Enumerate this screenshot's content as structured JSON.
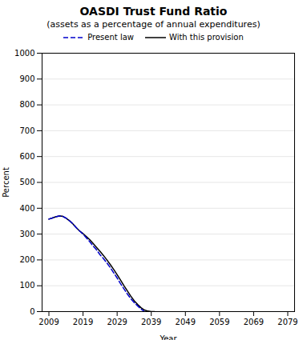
{
  "chart_data": {
    "type": "line",
    "title": "OASDI Trust Fund Ratio",
    "subtitle": "(assets as a percentage of annual expenditures)",
    "xlabel": "Year",
    "ylabel": "Percent",
    "x": [
      2009,
      2010,
      2011,
      2012,
      2013,
      2014,
      2015,
      2016,
      2017,
      2018,
      2019,
      2020,
      2021,
      2022,
      2023,
      2024,
      2025,
      2026,
      2027,
      2028,
      2029,
      2030,
      2031,
      2032,
      2033,
      2034,
      2035,
      2036,
      2037,
      2038,
      2039,
      2040
    ],
    "series": [
      {
        "name": "Present law",
        "color": "#0000cc",
        "line_style": "dashed",
        "values": [
          358,
          362,
          367,
          370,
          369,
          362,
          352,
          340,
          325,
          312,
          300,
          285,
          270,
          253,
          238,
          220,
          205,
          188,
          170,
          150,
          130,
          108,
          88,
          68,
          50,
          35,
          22,
          10,
          0,
          null,
          null,
          null
        ]
      },
      {
        "name": "With this provision",
        "color": "#000000",
        "line_style": "solid",
        "values": [
          358,
          362,
          367,
          370,
          369,
          362,
          352,
          340,
          325,
          312,
          302,
          290,
          278,
          263,
          248,
          233,
          217,
          200,
          182,
          163,
          143,
          122,
          100,
          80,
          60,
          42,
          28,
          15,
          6,
          2,
          0,
          0
        ]
      }
    ],
    "xlim": [
      2007,
      2081
    ],
    "ylim": [
      0,
      1000
    ],
    "xticks": [
      2009,
      2019,
      2029,
      2039,
      2049,
      2059,
      2069,
      2079
    ],
    "yticks": [
      0,
      100,
      200,
      300,
      400,
      500,
      600,
      700,
      800,
      900,
      1000
    ],
    "grid": "y",
    "legend": "top"
  }
}
